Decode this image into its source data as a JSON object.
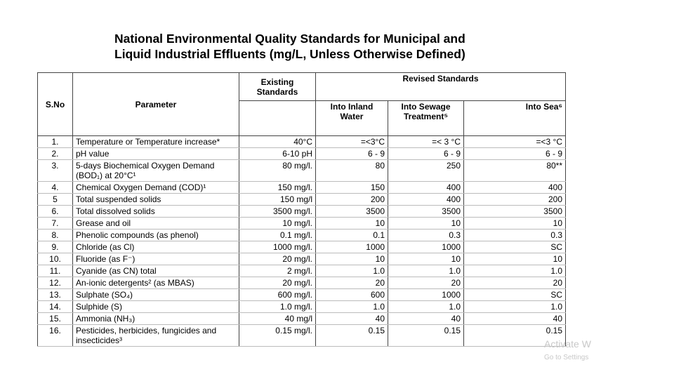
{
  "title": [
    "National Environmental Quality Standards for Municipal and",
    "Liquid Industrial Effluents (mg/L, Unless Otherwise Defined)"
  ],
  "table": {
    "headers": {
      "sno": "S.No",
      "parameter": "Parameter",
      "existing": "Existing Standards",
      "revised": "Revised Standards",
      "inland": "Into Inland Water",
      "sewage": "Into Sewage Treatment⁵",
      "sea": "Into Sea⁶"
    },
    "rows": [
      [
        "1.",
        "Temperature or Temperature increase*",
        "40°C",
        "=<3°C",
        "=< 3 °C",
        "=<3 °C"
      ],
      [
        "2.",
        "pH value",
        "6-10 pH",
        "6 - 9",
        "6 - 9",
        "6 - 9"
      ],
      [
        "3.",
        "5-days Biochemical Oxygen Demand (BOD₁) at 20°C¹",
        "80 mg/l.",
        "80",
        "250",
        "80**"
      ],
      [
        "4.",
        "Chemical Oxygen Demand (COD)¹",
        "150 mg/l.",
        "150",
        "400",
        "400"
      ],
      [
        "5",
        "Total suspended solids",
        "150 mg/l",
        "200",
        "400",
        "200"
      ],
      [
        "6.",
        "Total dissolved solids",
        "3500 mg/l.",
        "3500",
        "3500",
        "3500"
      ],
      [
        "7.",
        "Grease and oil",
        "10 mg/l.",
        "10",
        "10",
        "10"
      ],
      [
        "8.",
        "Phenolic compounds (as phenol)",
        "0.1 mg/l.",
        "0.1",
        "0.3",
        "0.3"
      ],
      [
        "9.",
        "Chloride (as Cl)",
        "1000 mg/l.",
        "1000",
        "1000",
        "SC"
      ],
      [
        "10.",
        "Fluoride (as F⁻)",
        "20 mg/l.",
        "10",
        "10",
        "10"
      ],
      [
        "11.",
        "Cyanide (as CN) total",
        "2 mg/l.",
        "1.0",
        "1.0",
        "1.0"
      ],
      [
        "12.",
        "An-ionic detergents² (as MBAS)",
        "20 mg/l.",
        "20",
        "20",
        "20"
      ],
      [
        "13.",
        "Sulphate (SO₄)",
        "600 mg/l.",
        "600",
        "1000",
        "SC"
      ],
      [
        "14.",
        "Sulphide (S)",
        "1.0 mg/l.",
        "1.0",
        "1.0",
        "1.0"
      ],
      [
        "15.",
        "Ammonia (NH₃)",
        "40 mg/l",
        "40",
        "40",
        "40"
      ],
      [
        "16.",
        "Pesticides, herbicides, fungicides and insecticides³",
        "0.15 mg/l.",
        "0.15",
        "0.15",
        "0.15"
      ]
    ]
  },
  "watermark": [
    "Activate W",
    "Go to Settings"
  ]
}
